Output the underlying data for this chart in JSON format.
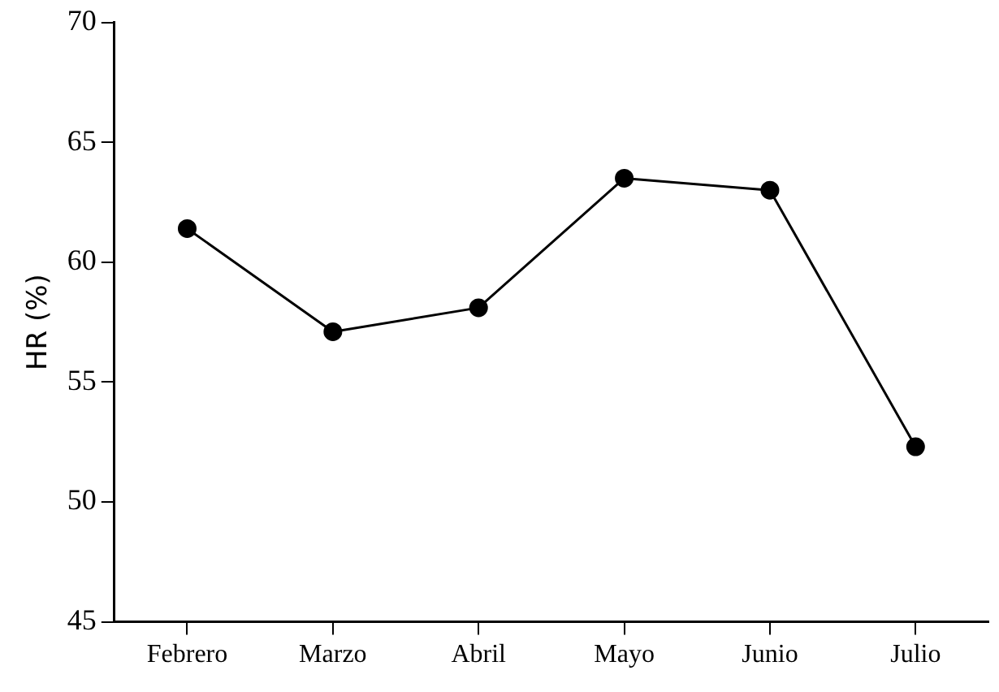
{
  "chart_data": {
    "type": "line",
    "ylabel": "HR (%)",
    "categories": [
      "Febrero",
      "Marzo",
      "Abril",
      "Mayo",
      "Junio",
      "Julio"
    ],
    "series": [
      {
        "color": "#000000",
        "values": [
          61.4,
          57.1,
          58.1,
          63.5,
          63.0,
          52.3
        ]
      }
    ],
    "ylim": [
      45,
      70
    ],
    "yticks": [
      45,
      50,
      55,
      60,
      65,
      70
    ],
    "grid": false,
    "legend": false,
    "marker": "circle",
    "line_style": "solid"
  }
}
